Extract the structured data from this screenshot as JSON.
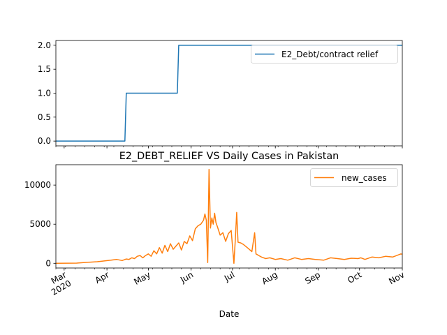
{
  "chart_data": [
    {
      "type": "line",
      "title": "",
      "xlabel": "",
      "ylabel": "",
      "x_range": [
        "2020-02-24",
        "2020-11-01"
      ],
      "ylim": [
        -0.1,
        2.1
      ],
      "yticks": [
        0.0,
        0.5,
        1.0,
        1.5,
        2.0
      ],
      "ytick_labels": [
        "0.0",
        "0.5",
        "1.0",
        "1.5",
        "2.0"
      ],
      "grid": false,
      "legend_position": "top-right",
      "series": [
        {
          "name": "E2_Debt/contract relief",
          "color": "#1f77b4",
          "step": true,
          "x": [
            "2020-02-24",
            "2020-04-14",
            "2020-04-15",
            "2020-05-22",
            "2020-05-23",
            "2020-11-01"
          ],
          "y": [
            0,
            0,
            1,
            1,
            2,
            2
          ]
        }
      ]
    },
    {
      "type": "line",
      "title": "E2_DEBT_RELIEF VS Daily Cases in Pakistan",
      "xlabel": "Date",
      "ylabel": "",
      "x_range": [
        "2020-02-24",
        "2020-11-01"
      ],
      "ylim": [
        -600,
        12600
      ],
      "yticks": [
        0,
        5000,
        10000
      ],
      "ytick_labels": [
        "0",
        "5000",
        "10000"
      ],
      "xticks": [
        "2020-03-01",
        "2020-04-01",
        "2020-05-01",
        "2020-06-01",
        "2020-07-01",
        "2020-08-01",
        "2020-09-01",
        "2020-10-01",
        "2020-11-01"
      ],
      "xtick_labels": [
        "Mar\n2020",
        "Apr",
        "May",
        "Jun",
        "Jul",
        "Aug",
        "Sep",
        "Oct",
        "Nov"
      ],
      "grid": false,
      "legend_position": "top-right",
      "series": [
        {
          "name": "new_cases",
          "color": "#ff7f0e",
          "x": [
            "2020-02-24",
            "2020-03-10",
            "2020-03-15",
            "2020-03-20",
            "2020-03-25",
            "2020-03-30",
            "2020-04-04",
            "2020-04-08",
            "2020-04-12",
            "2020-04-15",
            "2020-04-17",
            "2020-04-19",
            "2020-04-21",
            "2020-04-23",
            "2020-04-25",
            "2020-04-27",
            "2020-04-29",
            "2020-05-01",
            "2020-05-03",
            "2020-05-05",
            "2020-05-07",
            "2020-05-09",
            "2020-05-11",
            "2020-05-13",
            "2020-05-15",
            "2020-05-17",
            "2020-05-19",
            "2020-05-21",
            "2020-05-23",
            "2020-05-25",
            "2020-05-27",
            "2020-05-29",
            "2020-05-31",
            "2020-06-02",
            "2020-06-04",
            "2020-06-06",
            "2020-06-08",
            "2020-06-10",
            "2020-06-11",
            "2020-06-12",
            "2020-06-13",
            "2020-06-14",
            "2020-06-15",
            "2020-06-16",
            "2020-06-17",
            "2020-06-18",
            "2020-06-19",
            "2020-06-20",
            "2020-06-22",
            "2020-06-24",
            "2020-06-26",
            "2020-06-28",
            "2020-06-30",
            "2020-07-02",
            "2020-07-03",
            "2020-07-04",
            "2020-07-05",
            "2020-07-07",
            "2020-07-09",
            "2020-07-11",
            "2020-07-13",
            "2020-07-15",
            "2020-07-17",
            "2020-07-18",
            "2020-07-20",
            "2020-07-22",
            "2020-07-25",
            "2020-07-28",
            "2020-08-01",
            "2020-08-05",
            "2020-08-10",
            "2020-08-15",
            "2020-08-20",
            "2020-08-25",
            "2020-08-30",
            "2020-09-05",
            "2020-09-10",
            "2020-09-15",
            "2020-09-20",
            "2020-09-25",
            "2020-09-30",
            "2020-10-02",
            "2020-10-05",
            "2020-10-10",
            "2020-10-15",
            "2020-10-20",
            "2020-10-25",
            "2020-10-28",
            "2020-10-31",
            "2020-11-01"
          ],
          "y": [
            0,
            20,
            100,
            150,
            200,
            300,
            400,
            500,
            350,
            550,
            500,
            700,
            600,
            900,
            1000,
            700,
            1000,
            1200,
            900,
            1600,
            1200,
            2000,
            1300,
            2300,
            1500,
            2500,
            1800,
            2200,
            2600,
            1700,
            2800,
            2500,
            3500,
            2900,
            4400,
            4800,
            5000,
            5500,
            6300,
            5500,
            100,
            12000,
            4500,
            5800,
            5000,
            6400,
            5200,
            4700,
            3600,
            3900,
            2800,
            3800,
            4200,
            0,
            3000,
            6500,
            2700,
            2600,
            2400,
            2100,
            1800,
            1500,
            3900,
            1200,
            1000,
            800,
            600,
            700,
            500,
            600,
            400,
            700,
            500,
            600,
            500,
            400,
            700,
            600,
            500,
            650,
            600,
            700,
            500,
            800,
            700,
            900,
            800,
            1000,
            1200,
            1150
          ]
        }
      ]
    }
  ]
}
